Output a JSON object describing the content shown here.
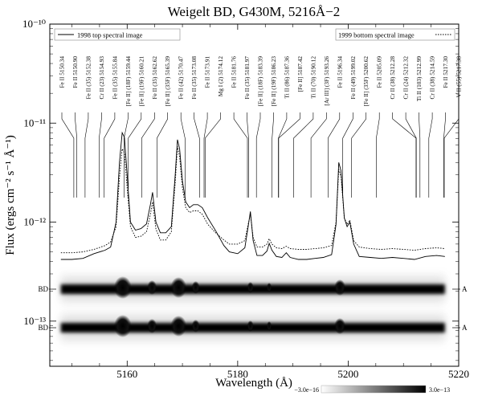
{
  "chart_data": {
    "type": "line",
    "title": "Weigelt BD, G430M, 5216Å−2",
    "xlabel": "Wavelength (Å)",
    "ylabel": "Flux (ergs cm⁻² s⁻¹ Å⁻¹)",
    "xlim": [
      5146,
      5220
    ],
    "ylim": [
      3.5e-14,
      1e-10
    ],
    "yscale": "log",
    "x_ticks": [
      5160,
      5180,
      5200,
      5220
    ],
    "y_ticks": [
      {
        "value": 1e-13,
        "label": "10⁻¹³"
      },
      {
        "value": 1e-12,
        "label": "10⁻¹²"
      },
      {
        "value": 1e-11,
        "label": "10⁻¹¹"
      },
      {
        "value": 1e-10,
        "label": "10⁻¹⁰"
      }
    ],
    "legend": [
      {
        "label": "1998 top spectral image",
        "placement": "top-left",
        "style": "solid"
      },
      {
        "label": "1999 bottom spectral image",
        "placement": "top-right",
        "style": "dotted"
      }
    ],
    "series": [
      {
        "name": "1998 top spectral image",
        "style": "solid",
        "points": [
          [
            5148,
            4.2e-13
          ],
          [
            5150,
            4.2e-13
          ],
          [
            5152,
            4.3e-13
          ],
          [
            5154,
            4.8e-13
          ],
          [
            5156,
            5.2e-13
          ],
          [
            5157,
            5.6e-13
          ],
          [
            5158,
            1e-12
          ],
          [
            5158.6,
            4e-12
          ],
          [
            5159.1,
            8e-12
          ],
          [
            5159.5,
            7.2e-12
          ],
          [
            5160,
            3e-12
          ],
          [
            5160.6,
            1e-12
          ],
          [
            5161.5,
            8.3e-13
          ],
          [
            5162.5,
            8.6e-13
          ],
          [
            5163.5,
            9.6e-13
          ],
          [
            5164.2,
            1.5e-12
          ],
          [
            5164.6,
            2e-12
          ],
          [
            5165.2,
            1e-12
          ],
          [
            5166,
            7.8e-13
          ],
          [
            5167,
            7.8e-13
          ],
          [
            5168,
            9e-13
          ],
          [
            5168.7,
            3e-12
          ],
          [
            5169.1,
            6.8e-12
          ],
          [
            5169.5,
            5.5e-12
          ],
          [
            5170,
            2.6e-12
          ],
          [
            5170.6,
            1.6e-12
          ],
          [
            5171.3,
            1.4e-12
          ],
          [
            5172,
            1.5e-12
          ],
          [
            5172.8,
            1.5e-12
          ],
          [
            5173.6,
            1.4e-12
          ],
          [
            5174.6,
            1.1e-12
          ],
          [
            5176,
            8.2e-13
          ],
          [
            5177.5,
            5.8e-13
          ],
          [
            5178.5,
            5e-13
          ],
          [
            5180,
            4.8e-13
          ],
          [
            5181.3,
            5.5e-13
          ],
          [
            5181.9,
            9e-13
          ],
          [
            5182.3,
            1.28e-12
          ],
          [
            5182.8,
            6.5e-13
          ],
          [
            5183.5,
            4.6e-13
          ],
          [
            5184.5,
            4.6e-13
          ],
          [
            5185.3,
            5.1e-13
          ],
          [
            5185.7,
            6.1e-13
          ],
          [
            5186.2,
            5.2e-13
          ],
          [
            5187,
            4.5e-13
          ],
          [
            5188,
            4.4e-13
          ],
          [
            5188.8,
            4.9e-13
          ],
          [
            5189.5,
            4.4e-13
          ],
          [
            5191,
            4.2e-13
          ],
          [
            5192.5,
            4.2e-13
          ],
          [
            5194,
            4.3e-13
          ],
          [
            5195.5,
            4.4e-13
          ],
          [
            5197,
            4.7e-13
          ],
          [
            5197.8,
            9.5e-13
          ],
          [
            5198.3,
            4e-12
          ],
          [
            5198.7,
            3.3e-12
          ],
          [
            5199.3,
            1.1e-12
          ],
          [
            5199.8,
            9e-13
          ],
          [
            5200.3,
            1e-12
          ],
          [
            5201,
            6e-13
          ],
          [
            5202,
            4.5e-13
          ],
          [
            5204,
            4.4e-13
          ],
          [
            5206,
            4.3e-13
          ],
          [
            5208,
            4.4e-13
          ],
          [
            5210,
            4.3e-13
          ],
          [
            5212,
            4.2e-13
          ],
          [
            5214,
            4.5e-13
          ],
          [
            5216,
            4.6e-13
          ],
          [
            5217.5,
            4.5e-13
          ]
        ]
      },
      {
        "name": "1999 bottom spectral image",
        "style": "dotted",
        "points": [
          [
            5148,
            4.9e-13
          ],
          [
            5150,
            4.9e-13
          ],
          [
            5152,
            5e-13
          ],
          [
            5154,
            5.3e-13
          ],
          [
            5156,
            5.8e-13
          ],
          [
            5157,
            6.3e-13
          ],
          [
            5158,
            9e-13
          ],
          [
            5158.6,
            2.8e-12
          ],
          [
            5159.1,
            5.5e-12
          ],
          [
            5159.5,
            5e-12
          ],
          [
            5160,
            2.2e-12
          ],
          [
            5160.6,
            9e-13
          ],
          [
            5161.5,
            7e-13
          ],
          [
            5162.5,
            7.2e-13
          ],
          [
            5163.5,
            8e-13
          ],
          [
            5164.2,
            1.2e-12
          ],
          [
            5164.6,
            1.6e-12
          ],
          [
            5165.2,
            8.5e-13
          ],
          [
            5166,
            6.6e-13
          ],
          [
            5167,
            6.6e-13
          ],
          [
            5168,
            8e-13
          ],
          [
            5168.7,
            2.5e-12
          ],
          [
            5169.1,
            5.8e-12
          ],
          [
            5169.5,
            4.6e-12
          ],
          [
            5170,
            2.2e-12
          ],
          [
            5170.6,
            1.4e-12
          ],
          [
            5171.3,
            1.25e-12
          ],
          [
            5172,
            1.3e-12
          ],
          [
            5172.8,
            1.3e-12
          ],
          [
            5173.6,
            1.2e-12
          ],
          [
            5174.6,
            9.5e-13
          ],
          [
            5176,
            7.8e-13
          ],
          [
            5177.5,
            6.6e-13
          ],
          [
            5178.5,
            6e-13
          ],
          [
            5180,
            6e-13
          ],
          [
            5181.3,
            6.5e-13
          ],
          [
            5181.9,
            9.5e-13
          ],
          [
            5182.3,
            1.2e-12
          ],
          [
            5182.8,
            7e-13
          ],
          [
            5183.5,
            5.6e-13
          ],
          [
            5184.5,
            5.6e-13
          ],
          [
            5185.3,
            6e-13
          ],
          [
            5185.7,
            6.8e-13
          ],
          [
            5186.2,
            6e-13
          ],
          [
            5187,
            5.5e-13
          ],
          [
            5188,
            5.4e-13
          ],
          [
            5188.8,
            5.7e-13
          ],
          [
            5189.5,
            5.4e-13
          ],
          [
            5191,
            5.3e-13
          ],
          [
            5192.5,
            5.3e-13
          ],
          [
            5194,
            5.4e-13
          ],
          [
            5195.5,
            5.5e-13
          ],
          [
            5197,
            5.8e-13
          ],
          [
            5197.8,
            1e-12
          ],
          [
            5198.3,
            3.4e-12
          ],
          [
            5198.7,
            2.9e-12
          ],
          [
            5199.3,
            1.1e-12
          ],
          [
            5199.8,
            9.5e-13
          ],
          [
            5200.3,
            1.05e-12
          ],
          [
            5201,
            6.5e-13
          ],
          [
            5202,
            5.6e-13
          ],
          [
            5204,
            5.4e-13
          ],
          [
            5206,
            5.3e-13
          ],
          [
            5208,
            5.4e-13
          ],
          [
            5210,
            5.3e-13
          ],
          [
            5212,
            5.2e-13
          ],
          [
            5214,
            5.4e-13
          ],
          [
            5216,
            5.5e-13
          ],
          [
            5217.5,
            5.4e-13
          ]
        ]
      }
    ],
    "line_ids": [
      {
        "text": "Fe II 5150.34",
        "wavelength": 5150.34
      },
      {
        "text": "Fe II 5150.90",
        "wavelength": 5150.9
      },
      {
        "text": "Fe II (35) 5152.38",
        "wavelength": 5152.38
      },
      {
        "text": "Cr II (23) 5154.93",
        "wavelength": 5154.93
      },
      {
        "text": "Fe II (35) 5155.84",
        "wavelength": 5155.84
      },
      {
        "text": "[Fe II] (18F) 5159.44",
        "wavelength": 5159.44
      },
      {
        "text": "[Fe II] (19F) 5160.21",
        "wavelength": 5160.21
      },
      {
        "text": "Fe II (35) 5162.62",
        "wavelength": 5162.62
      },
      {
        "text": "[Fe II] (35F) 5165.39",
        "wavelength": 5165.39
      },
      {
        "text": "Fe II (42) 5170.47",
        "wavelength": 5170.47
      },
      {
        "text": "Fe II (35) 5173.08",
        "wavelength": 5173.08
      },
      {
        "text": "Fe II 5173.91",
        "wavelength": 5173.91
      },
      {
        "text": "Mg I (2) 5174.12",
        "wavelength": 5174.12
      },
      {
        "text": "Fe II 5181.76",
        "wavelength": 5181.76
      },
      {
        "text": "Fe II (35) 5181.97",
        "wavelength": 5181.97
      },
      {
        "text": "[Fe II] (18F) 5183.39",
        "wavelength": 5183.39
      },
      {
        "text": "[Fe II] (19F) 5186.23",
        "wavelength": 5186.23
      },
      {
        "text": "Ti II (86) 5187.36",
        "wavelength": 5187.36
      },
      {
        "text": "[Fe II] 5187.42",
        "wavelength": 5187.42
      },
      {
        "text": "Ti II (70) 5190.12",
        "wavelength": 5190.12
      },
      {
        "text": "[Ar III] (3F) 5193.26",
        "wavelength": 5193.26
      },
      {
        "text": "Fe II 5196.34",
        "wavelength": 5196.34
      },
      {
        "text": "Fe II (49) 5199.02",
        "wavelength": 5199.02
      },
      {
        "text": "[Fe II] (35F) 5200.62",
        "wavelength": 5200.62
      },
      {
        "text": "Fe II 5205.09",
        "wavelength": 5205.09
      },
      {
        "text": "Cr II (38) 5212.28",
        "wavelength": 5212.28
      },
      {
        "text": "Cr II (24) 5212.32",
        "wavelength": 5212.32
      },
      {
        "text": "Ti II (103) 5212.99",
        "wavelength": 5212.99
      },
      {
        "text": "Cr II (38) 5214.59",
        "wavelength": 5214.59
      },
      {
        "text": "Fe II 5217.30",
        "wavelength": 5217.3
      },
      {
        "text": "V II (55) 5217.38",
        "wavelength": 5217.38
      }
    ],
    "spectral_images": [
      {
        "left_label": "BD",
        "right_label": "A"
      },
      {
        "left_label": "BD",
        "right_label": "A"
      }
    ],
    "colorbar": {
      "min_label": "−3.0e−16",
      "max_label": "3.0e−13"
    }
  }
}
